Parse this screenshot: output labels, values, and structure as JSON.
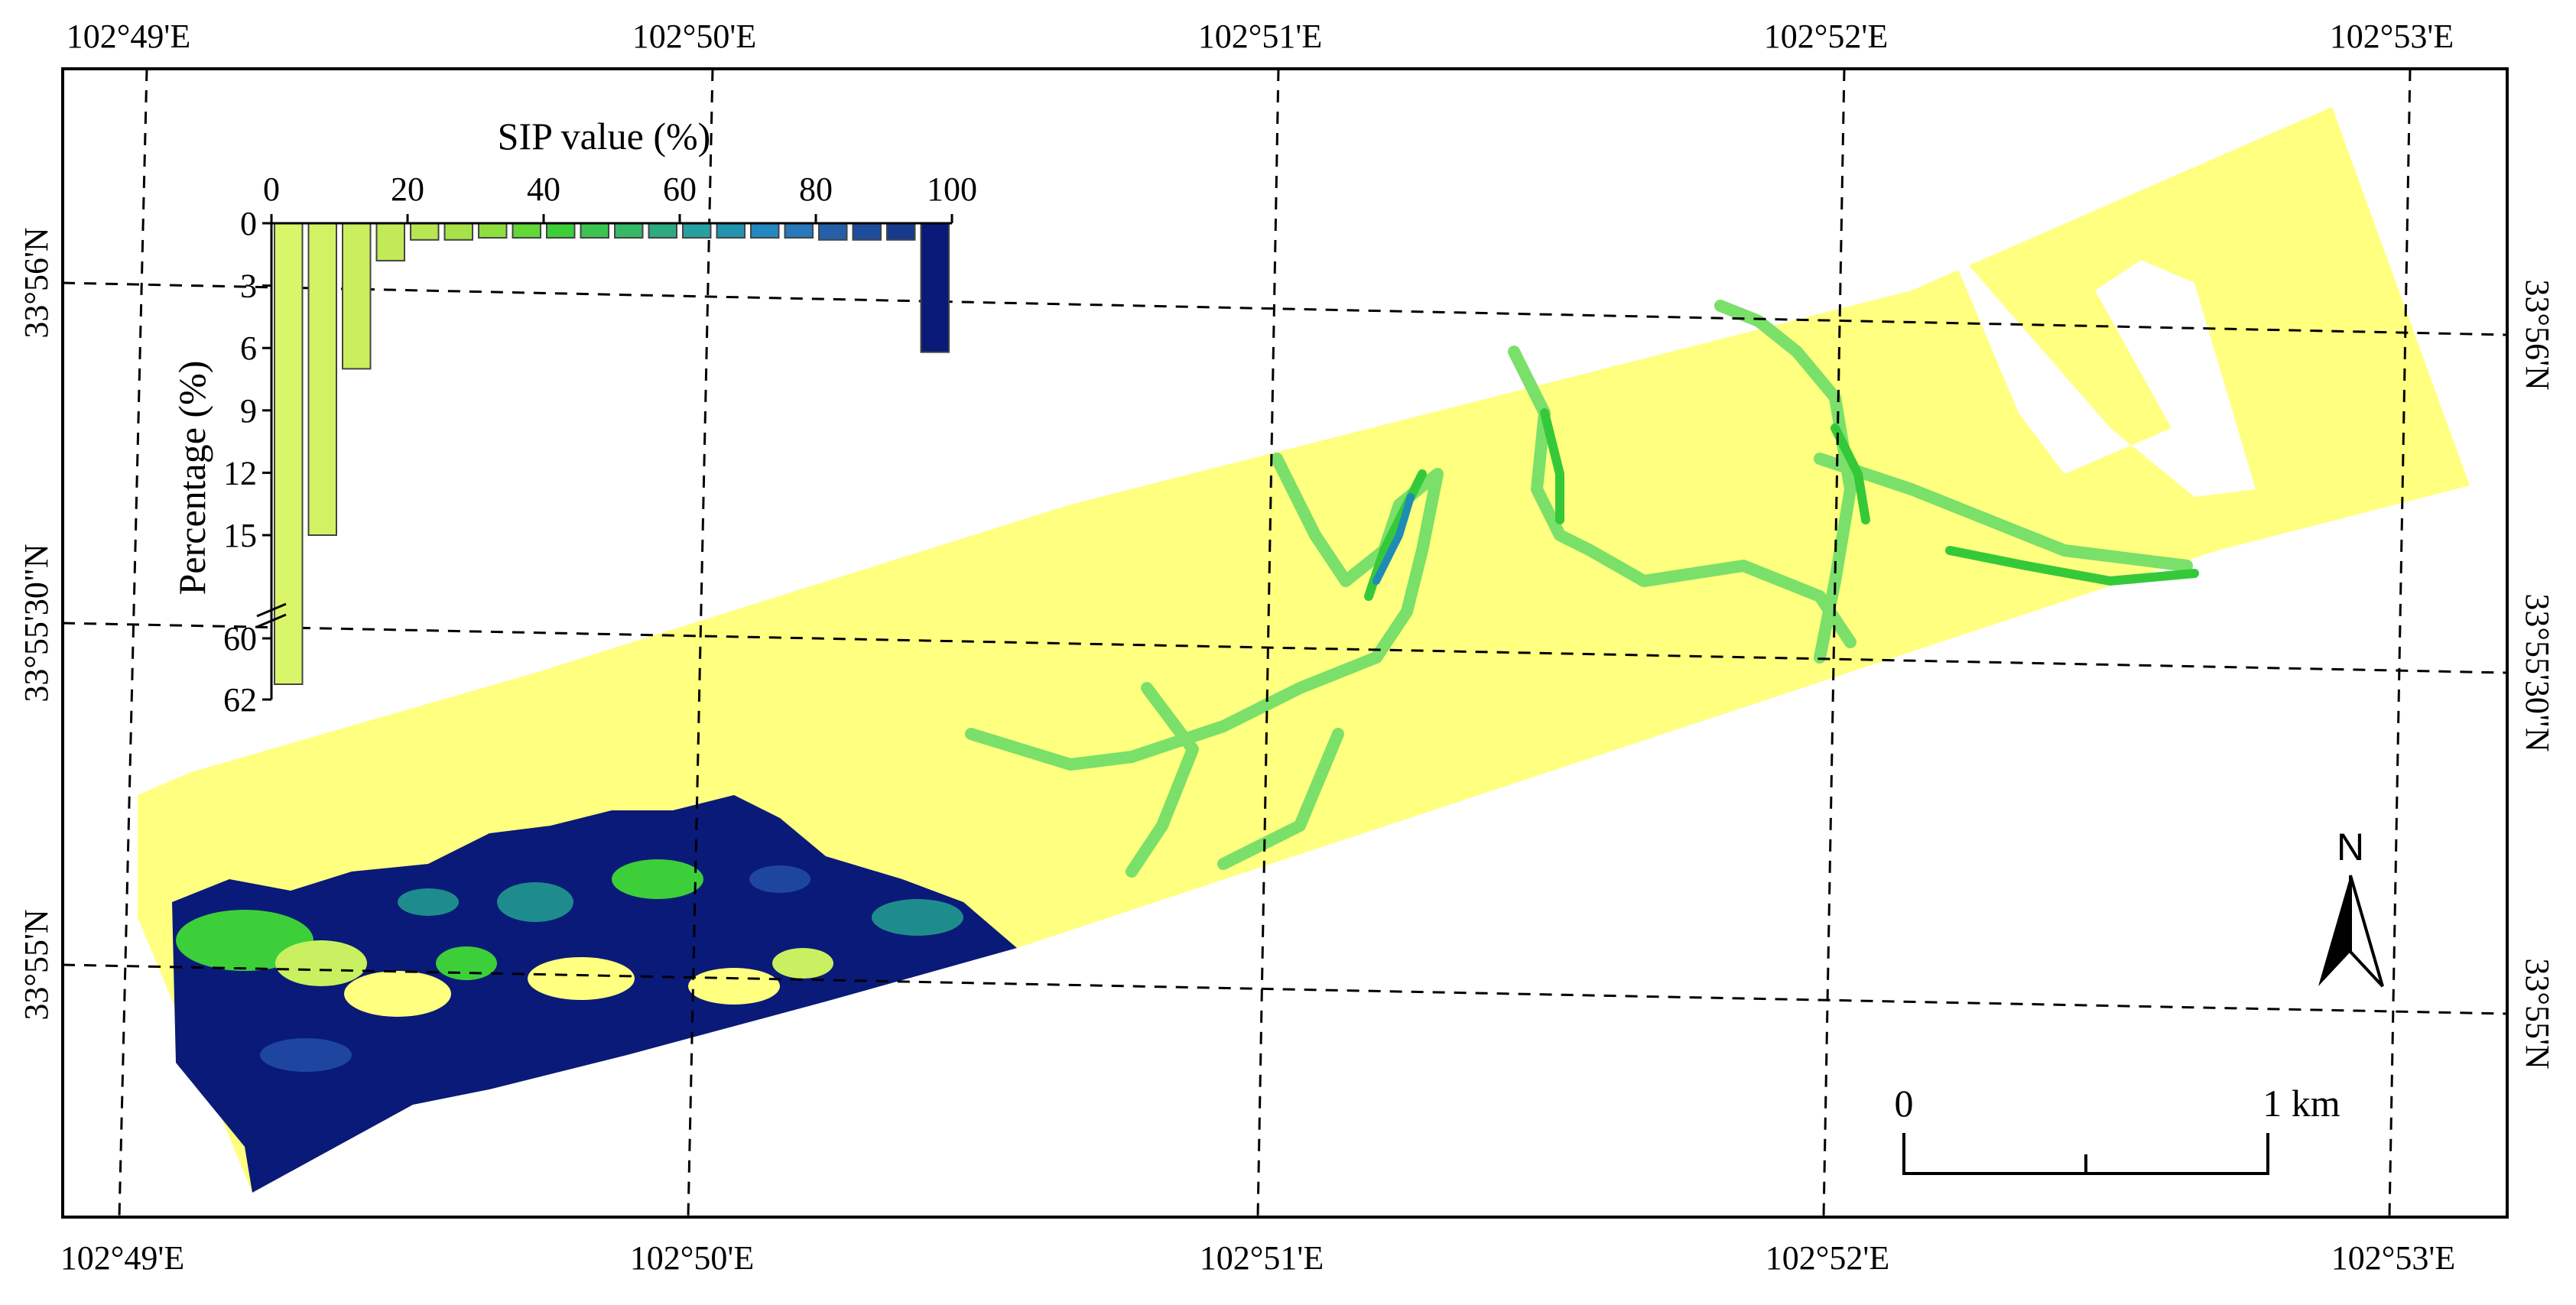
{
  "map": {
    "top_lon_labels": [
      "102°49'E",
      "102°50'E",
      "102°51'E",
      "102°52'E",
      "102°53'E"
    ],
    "bottom_lon_labels": [
      "102°49'E",
      "102°50'E",
      "102°51'E",
      "102°52'E",
      "102°53'E"
    ],
    "left_lat_labels": [
      "33°56'N",
      "33°55'30\"N",
      "33°55'N"
    ],
    "right_lat_labels": [
      "33°56'N",
      "33°55'30\"N",
      "33°55'N"
    ],
    "colors": {
      "low": "#ffff80",
      "low_mid": "#c8f060",
      "green": "#3cd22a",
      "teal": "#1e8c8c",
      "blue": "#1e46a0",
      "high": "#0a1a78"
    }
  },
  "chart_data": {
    "type": "bar",
    "title": "SIP value (%)",
    "ylabel": "Percentage (%)",
    "x_ticks": [
      "0",
      "20",
      "40",
      "60",
      "80",
      "100"
    ],
    "y_ticks": [
      "0",
      "3",
      "6",
      "9",
      "12",
      "15",
      "60",
      "62"
    ],
    "y_axis_break": [
      16,
      59
    ],
    "categories": [
      "0-5",
      "5-10",
      "10-15",
      "15-20",
      "20-25",
      "25-30",
      "30-35",
      "35-40",
      "40-45",
      "45-50",
      "50-55",
      "55-60",
      "60-65",
      "65-70",
      "70-75",
      "75-80",
      "80-85",
      "85-90",
      "90-95",
      "95-100"
    ],
    "values": [
      61.5,
      15,
      7,
      1.8,
      0.8,
      0.8,
      0.7,
      0.7,
      0.7,
      0.7,
      0.7,
      0.7,
      0.7,
      0.7,
      0.7,
      0.7,
      0.8,
      0.8,
      0.8,
      6.2
    ],
    "bar_colors": [
      "#d9f56a",
      "#d2f264",
      "#cbee5e",
      "#c2ea58",
      "#b8e650",
      "#a8e24a",
      "#8ede40",
      "#62d838",
      "#3ccf3a",
      "#3cc450",
      "#36b868",
      "#2eaa80",
      "#26a0a0",
      "#2294b0",
      "#2488c0",
      "#2878bc",
      "#2460aa",
      "#1e4c9c",
      "#163a8c",
      "#0a1a78"
    ]
  },
  "scale_bar": {
    "start_label": "0",
    "end_label": "1 km"
  },
  "north_arrow": {
    "label": "N"
  }
}
